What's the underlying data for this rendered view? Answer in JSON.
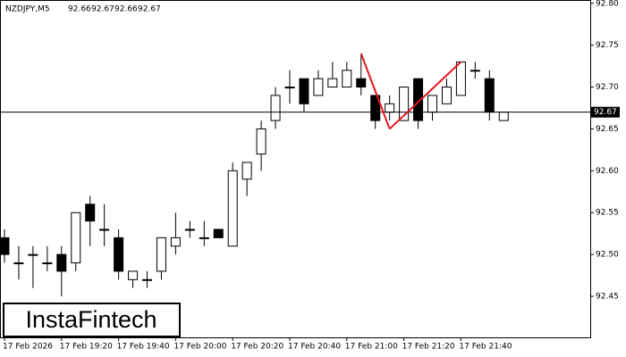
{
  "chart_data": {
    "type": "candlestick",
    "title": "NZDJPY,M5",
    "categories": [
      "17 Feb 2026",
      null,
      null,
      null,
      "17 Feb 19:20",
      null,
      null,
      null,
      "17 Feb 19:40",
      null,
      null,
      null,
      "17 Feb 20:00",
      null,
      null,
      null,
      "17 Feb 20:20",
      null,
      null,
      null,
      "17 Feb 20:40",
      null,
      null,
      null,
      "17 Feb 21:00",
      null,
      null,
      null,
      "17 Feb 21:20",
      null,
      null,
      null,
      "17 Feb 21:40",
      null,
      null,
      null
    ],
    "open": [
      92.52,
      92.49,
      92.5,
      92.49,
      92.5,
      92.49,
      92.56,
      92.53,
      92.52,
      92.47,
      92.47,
      92.48,
      92.51,
      92.53,
      92.52,
      92.53,
      92.51,
      92.59,
      92.62,
      92.66,
      92.7,
      92.71,
      92.69,
      92.7,
      92.7,
      92.71,
      92.69,
      92.67,
      92.66,
      92.71,
      92.67,
      92.68,
      92.69,
      92.72,
      92.71,
      92.66
    ],
    "high": [
      92.53,
      92.51,
      92.51,
      92.51,
      92.51,
      92.55,
      92.57,
      92.56,
      92.53,
      92.48,
      92.48,
      92.52,
      92.55,
      92.54,
      92.54,
      92.53,
      92.61,
      92.61,
      92.66,
      92.7,
      92.72,
      92.71,
      92.72,
      92.73,
      92.73,
      92.74,
      92.69,
      92.69,
      92.7,
      92.71,
      92.69,
      92.71,
      92.73,
      92.73,
      92.72,
      92.67
    ],
    "low": [
      92.49,
      92.47,
      92.46,
      92.48,
      92.45,
      92.48,
      92.51,
      92.51,
      92.47,
      92.46,
      92.46,
      92.47,
      92.5,
      92.52,
      92.51,
      92.52,
      92.51,
      92.57,
      92.6,
      92.65,
      92.68,
      92.67,
      92.69,
      92.7,
      92.7,
      92.69,
      92.65,
      92.66,
      92.66,
      92.65,
      92.66,
      92.68,
      92.69,
      92.71,
      92.66,
      92.66
    ],
    "close": [
      92.5,
      92.49,
      92.5,
      92.49,
      92.48,
      92.55,
      92.54,
      92.53,
      92.48,
      92.48,
      92.47,
      92.52,
      92.52,
      92.53,
      92.52,
      92.52,
      92.6,
      92.61,
      92.65,
      92.69,
      92.7,
      92.68,
      92.71,
      92.71,
      92.72,
      92.7,
      92.66,
      92.68,
      92.7,
      92.66,
      92.69,
      92.7,
      92.73,
      92.72,
      92.67,
      92.67
    ],
    "up_color": "#ffffff",
    "down_color": "#000000",
    "ylim": [
      92.401,
      92.804
    ],
    "yticks": [
      {
        "value": 92.8,
        "label": "92.80"
      },
      92.75,
      {
        "value": 92.7,
        "label": "92.70"
      },
      92.65,
      {
        "value": 92.6,
        "label": "92.60"
      },
      92.55,
      {
        "value": 92.5,
        "label": "92.50"
      },
      92.45
    ],
    "last_price": 92.67,
    "pattern": {
      "color": "#e8141c",
      "points": [
        {
          "x": 25,
          "y": 92.74
        },
        {
          "x": 27,
          "y": 92.65
        },
        {
          "x": 32,
          "y": 92.73
        }
      ]
    },
    "watermark": "InstaFintech"
  }
}
